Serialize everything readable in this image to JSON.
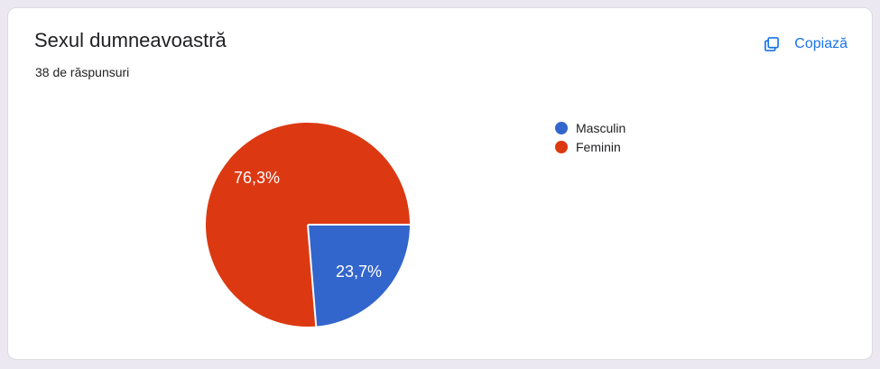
{
  "card": {
    "title": "Sexul dumneavoastră",
    "responses_label": "38 de răspunsuri",
    "copy_button_label": "Copiază"
  },
  "colors": {
    "accent_blue": "#1a73e8",
    "page_background": "#ebe8f2",
    "card_background": "#ffffff",
    "card_border": "#dadce0",
    "text_primary": "#202124"
  },
  "chart_data": {
    "type": "pie",
    "title": "Sexul dumneavoastră",
    "total_responses": 38,
    "total_responses_label": "38 de răspunsuri",
    "categories": [
      "Masculin",
      "Feminin"
    ],
    "values": [
      23.7,
      76.3
    ],
    "value_unit": "percent",
    "percent_labels": [
      "23,7%",
      "76,3%"
    ],
    "colors": [
      "#3366cc",
      "#dc3912"
    ],
    "legend_position": "right",
    "start_angle_deg": 90,
    "direction": "clockwise",
    "slice_label_color": "#ffffff",
    "slice_separator_color": "#ffffff"
  }
}
